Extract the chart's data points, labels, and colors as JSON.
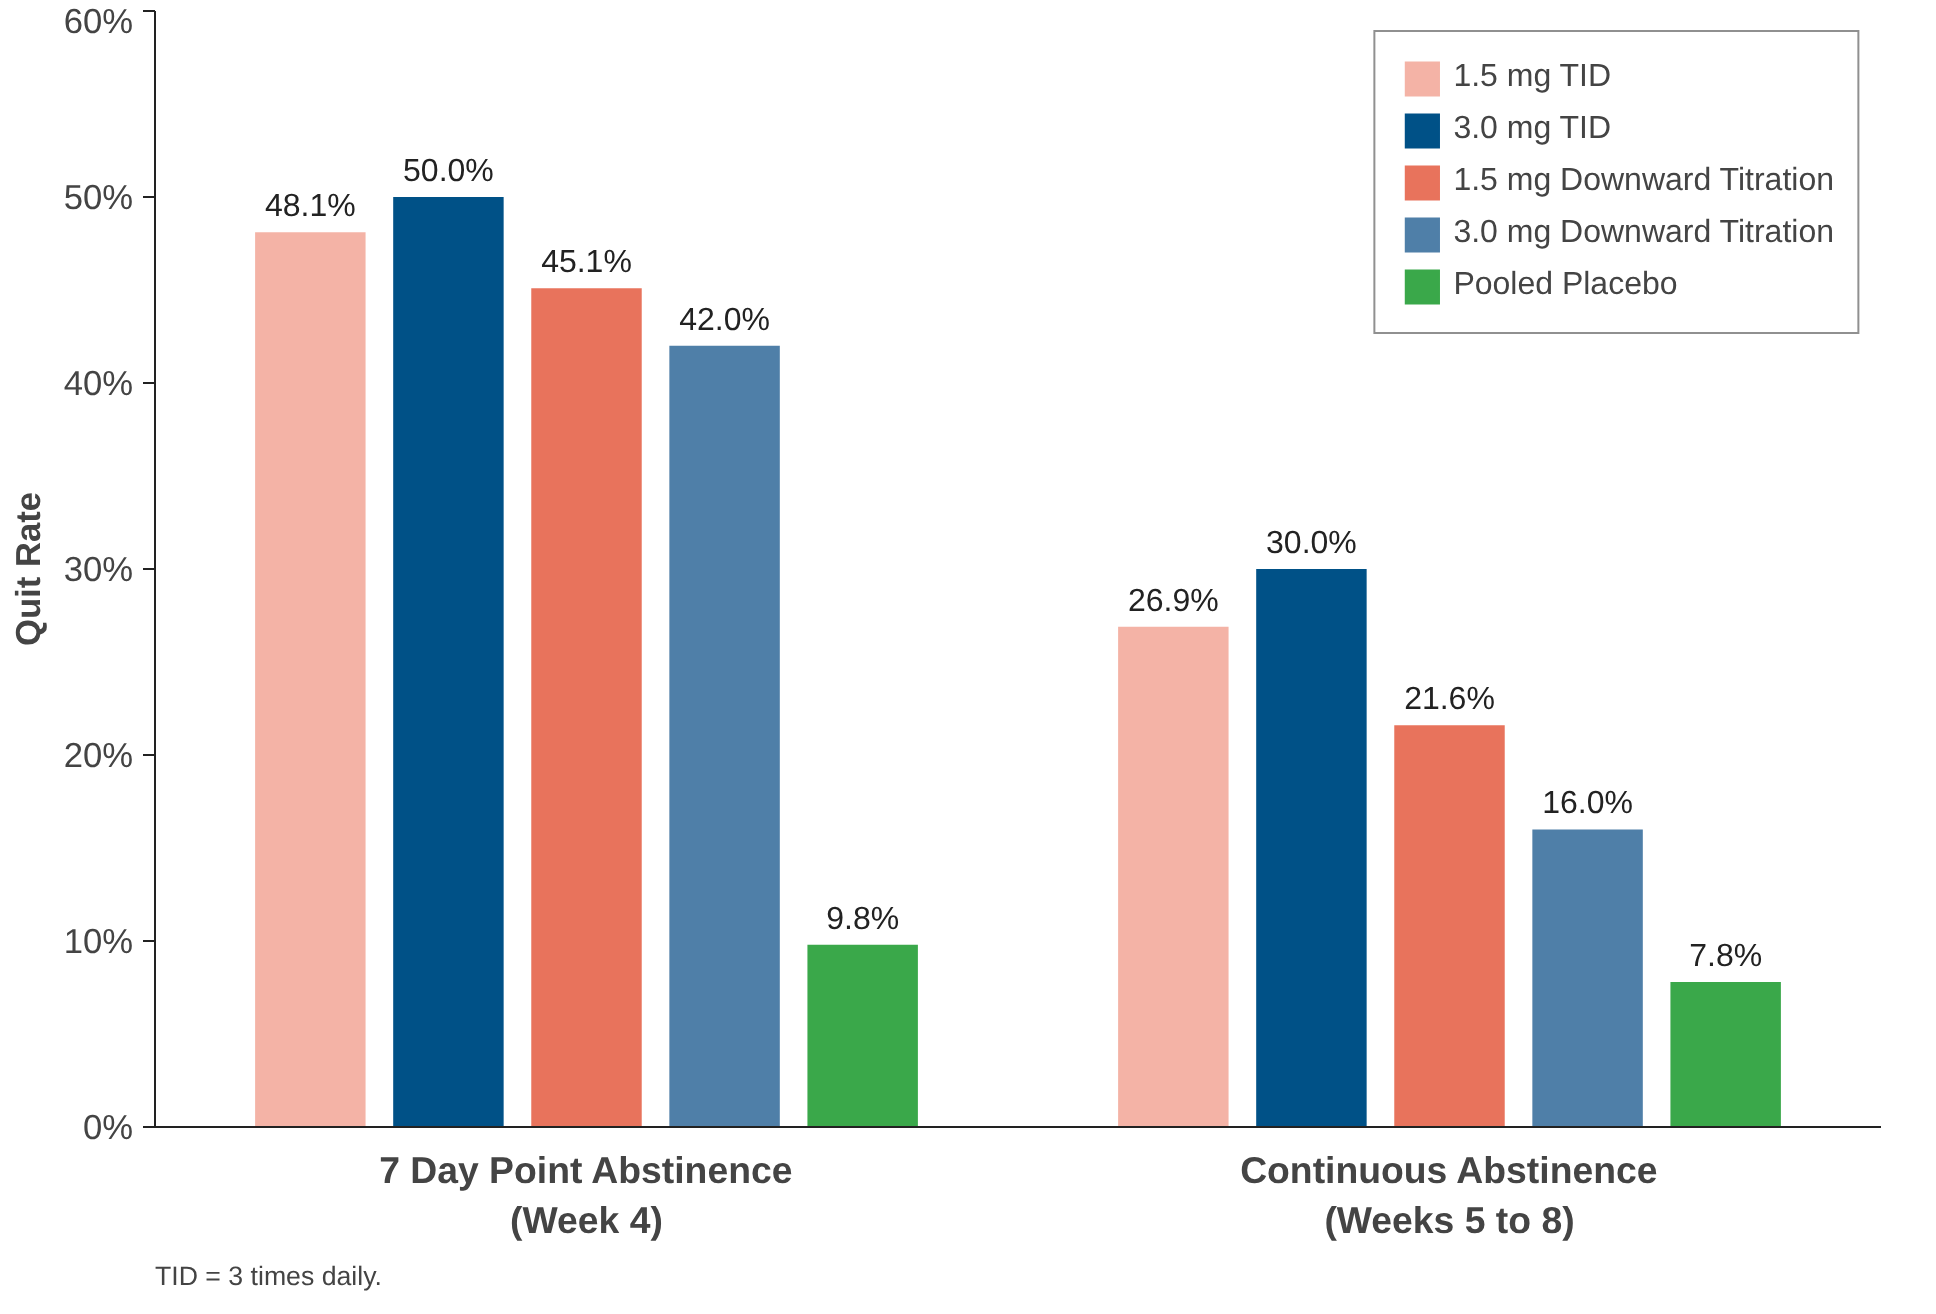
{
  "chart_data": {
    "type": "bar",
    "ylabel": "Quit Rate",
    "categories": [
      "7 Day Point Abstinence\n(Week 4)",
      "Continuous Abstinence\n(Weeks 5 to 8)"
    ],
    "series": [
      {
        "name": "1.5 mg TID",
        "color": "#f4b3a6",
        "values": [
          48.1,
          26.9
        ],
        "value_labels": [
          "48.1%",
          "26.9%"
        ]
      },
      {
        "name": "3.0 mg TID",
        "color": "#005187",
        "values": [
          50.0,
          30.0
        ],
        "value_labels": [
          "50.0%",
          "30.0%"
        ]
      },
      {
        "name": "1.5 mg Downward Titration",
        "color": "#e8735c",
        "values": [
          45.1,
          21.6
        ],
        "value_labels": [
          "45.1%",
          "21.6%"
        ]
      },
      {
        "name": "3.0 mg Downward Titration",
        "color": "#4f7fa8",
        "values": [
          42.0,
          16.0
        ],
        "value_labels": [
          "42.0%",
          "16.0%"
        ]
      },
      {
        "name": "Pooled Placebo",
        "color": "#3aa84a",
        "values": [
          9.8,
          7.8
        ],
        "value_labels": [
          "9.8%",
          "7.8%"
        ]
      }
    ],
    "ylim": [
      0,
      60
    ],
    "yticks": [
      {
        "value": 0,
        "label": "0%"
      },
      {
        "value": 10,
        "label": "10%"
      },
      {
        "value": 20,
        "label": "20%"
      },
      {
        "value": 30,
        "label": "30%"
      },
      {
        "value": 40,
        "label": "40%"
      },
      {
        "value": 50,
        "label": "50%"
      },
      {
        "value": 60,
        "label": "60%"
      }
    ],
    "grid": false,
    "legend": "top right",
    "annotations": [
      "TID = 3 times daily."
    ]
  }
}
